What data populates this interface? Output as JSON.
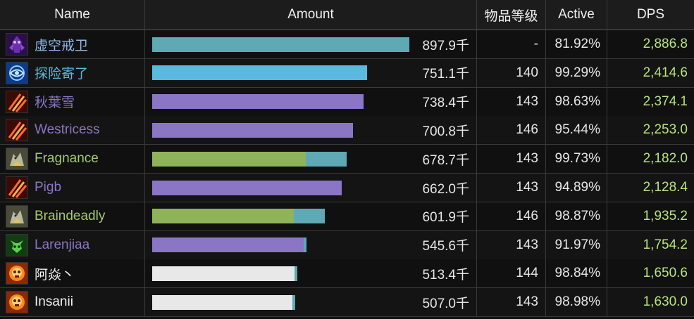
{
  "header": {
    "name": "Name",
    "amount": "Amount",
    "item_level": "物品等级",
    "active": "Active",
    "dps": "DPS"
  },
  "colors": {
    "void": "#5ea9b3",
    "shaman": "#5bb9dd",
    "warlock": "#8a76c4",
    "hunter": "#8fb35a",
    "priest": "#e8e8e8",
    "pet": "#5ea9b3",
    "dps_text": "#b7e37a"
  },
  "rows": [
    {
      "name": "虚空戒卫",
      "name_color": "#8fb7e6",
      "icon": "void-walker-icon",
      "bar_color": "#5ea9b3",
      "bar_pct": 1.0,
      "pet_pct": 0.0,
      "amount": "897.9千",
      "ilvl": "-",
      "active": "81.92%",
      "dps": "2,886.8"
    },
    {
      "name": "探险寄了",
      "name_color": "#5bb9dd",
      "icon": "shaman-rune-icon",
      "bar_color": "#5bb9dd",
      "bar_pct": 0.8365,
      "pet_pct": 0.0,
      "amount": "751.1千",
      "ilvl": "140",
      "active": "99.29%",
      "dps": "2,414.6"
    },
    {
      "name": "秋葉雪",
      "name_color": "#8a76c4",
      "icon": "claw-strike-icon",
      "bar_color": "#8a76c4",
      "bar_pct": 0.8223,
      "pet_pct": 0.0,
      "amount": "738.4千",
      "ilvl": "143",
      "active": "98.63%",
      "dps": "2,374.1"
    },
    {
      "name": "Westricess",
      "name_color": "#8a76c4",
      "icon": "claw-strike-icon",
      "bar_color": "#8a76c4",
      "bar_pct": 0.7806,
      "pet_pct": 0.0,
      "amount": "700.8千",
      "ilvl": "146",
      "active": "95.44%",
      "dps": "2,253.0"
    },
    {
      "name": "Fragnance",
      "name_color": "#a4c96b",
      "icon": "hunter-beast-icon",
      "bar_color": "#8fb35a",
      "bar_pct": 0.5981,
      "pet_pct": 0.1585,
      "amount": "678.7千",
      "ilvl": "143",
      "active": "99.73%",
      "dps": "2,182.0"
    },
    {
      "name": "Pigb",
      "name_color": "#8a76c4",
      "icon": "claw-strike-icon",
      "bar_color": "#8a76c4",
      "bar_pct": 0.7371,
      "pet_pct": 0.0,
      "amount": "662.0千",
      "ilvl": "143",
      "active": "94.89%",
      "dps": "2,128.4"
    },
    {
      "name": "Braindeadly",
      "name_color": "#a4c96b",
      "icon": "hunter-beast-icon",
      "bar_color": "#8fb35a",
      "bar_pct": 0.5507,
      "pet_pct": 0.1194,
      "amount": "601.9千",
      "ilvl": "146",
      "active": "98.87%",
      "dps": "1,935.2"
    },
    {
      "name": "Larenjiaa",
      "name_color": "#8a76c4",
      "icon": "demon-skull-icon",
      "bar_color": "#8a76c4",
      "bar_pct": 0.5879,
      "pet_pct": 0.0105,
      "amount": "545.6千",
      "ilvl": "143",
      "active": "91.97%",
      "dps": "1,754.2"
    },
    {
      "name": "阿焱丶",
      "name_color": "#f2f2f2",
      "icon": "fire-skull-icon",
      "bar_color": "#e8e8e8",
      "bar_pct": 0.5534,
      "pet_pct": 0.0105,
      "amount": "513.4千",
      "ilvl": "144",
      "active": "98.84%",
      "dps": "1,650.6"
    },
    {
      "name": "Insanii",
      "name_color": "#f2f2f2",
      "icon": "fire-skull-icon",
      "bar_color": "#e8e8e8",
      "bar_pct": 0.5455,
      "pet_pct": 0.0105,
      "amount": "507.0千",
      "ilvl": "143",
      "active": "98.98%",
      "dps": "1,630.0"
    }
  ]
}
